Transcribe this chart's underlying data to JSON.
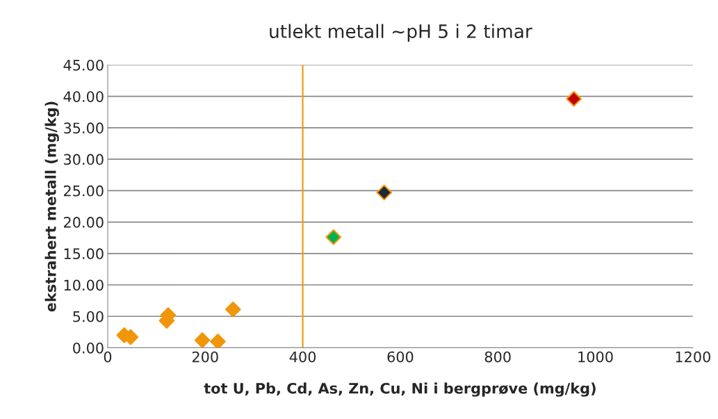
{
  "chart_data": {
    "type": "scatter",
    "title": "utlekt metall ~pH 5 i 2 timar",
    "xlabel": "tot U, Pb, Cd, As, Zn, Cu, Ni i bergprøve (mg/kg)",
    "ylabel": "ekstrahert metall (mg/kg)",
    "series": [
      {
        "color": "#f0960a",
        "x": [
          34,
          47,
          121,
          124,
          194,
          226,
          257,
          463,
          567,
          956
        ],
        "values": [
          2.0,
          1.7,
          4.3,
          5.2,
          1.2,
          1.0,
          6.1,
          17.6,
          24.7,
          39.6
        ],
        "colors": [
          "#f0960a",
          "#f0960a",
          "#f0960a",
          "#f0960a",
          "#f0960a",
          "#f0960a",
          "#f0960a",
          "#00b050",
          "#1f2a38",
          "#c00000"
        ]
      }
    ],
    "marker": "diamond",
    "grid": "y",
    "xlim": [
      0,
      1200
    ],
    "xticks": [
      0,
      200,
      400,
      600,
      800,
      1000,
      1200
    ],
    "ylim": [
      0,
      45
    ],
    "yticks": [
      {
        "value": 0,
        "label": "0.00"
      },
      {
        "value": 5,
        "label": "5.00"
      },
      {
        "value": 10,
        "label": "10.00"
      },
      {
        "value": 15,
        "label": "15.00"
      },
      {
        "value": 20,
        "label": "20.00"
      },
      {
        "value": 25,
        "label": "25.00"
      },
      {
        "value": 30,
        "label": "30.00"
      },
      {
        "value": 35,
        "label": "35.00"
      },
      {
        "value": 40,
        "label": "40.00"
      },
      {
        "value": 45,
        "label": "45.00"
      }
    ],
    "ref_lines": [
      {
        "axis": "x",
        "value": 400,
        "color": "#f0960a"
      }
    ]
  }
}
